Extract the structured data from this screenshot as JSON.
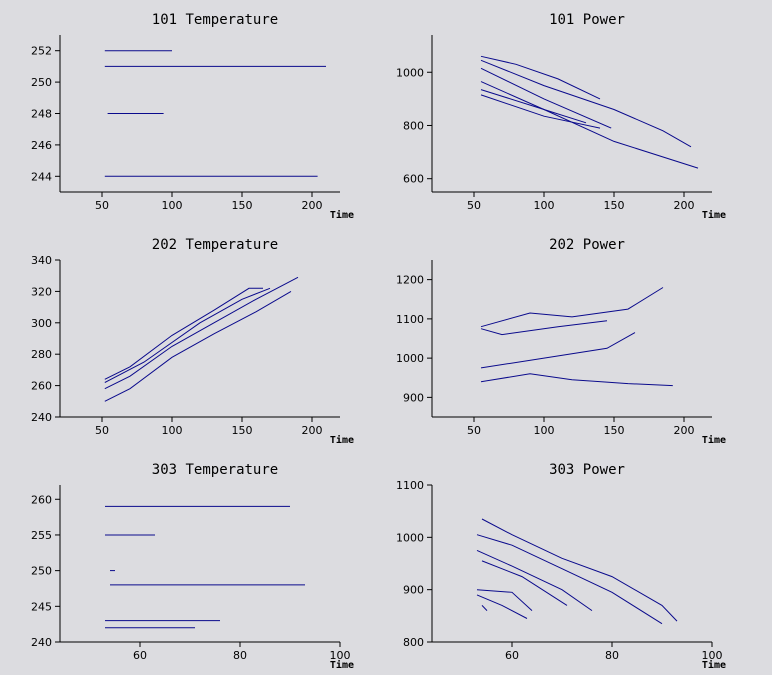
{
  "colors": {
    "background": "#dcdce0",
    "axis": "#000000",
    "series": "#0a0a8c"
  },
  "chart_data": [
    {
      "type": "line",
      "title": "101 Temperature",
      "xlabel": "Time",
      "ylabel": "",
      "xlim": [
        20,
        220
      ],
      "ylim": [
        243,
        253
      ],
      "xticks": [
        50,
        100,
        150,
        200
      ],
      "yticks": [
        244,
        246,
        248,
        250,
        252
      ],
      "series": [
        {
          "points": [
            [
              52,
              252
            ],
            [
              100,
              252
            ]
          ]
        },
        {
          "points": [
            [
              52,
              251
            ],
            [
              210,
              251
            ]
          ]
        },
        {
          "points": [
            [
              54,
              248
            ],
            [
              94,
              248
            ]
          ]
        },
        {
          "points": [
            [
              52,
              244
            ],
            [
              204,
              244
            ]
          ]
        }
      ]
    },
    {
      "type": "line",
      "title": "101 Power",
      "xlabel": "Time",
      "ylabel": "",
      "xlim": [
        20,
        220
      ],
      "ylim": [
        550,
        1140
      ],
      "xticks": [
        50,
        100,
        150,
        200
      ],
      "yticks": [
        600,
        800,
        1000
      ],
      "series": [
        {
          "points": [
            [
              55,
              1060
            ],
            [
              80,
              1030
            ],
            [
              110,
              975
            ],
            [
              140,
              900
            ]
          ]
        },
        {
          "points": [
            [
              55,
              1045
            ],
            [
              100,
              950
            ],
            [
              150,
              860
            ],
            [
              185,
              780
            ],
            [
              205,
              720
            ]
          ]
        },
        {
          "points": [
            [
              55,
              1015
            ],
            [
              100,
              900
            ],
            [
              148,
              790
            ]
          ]
        },
        {
          "points": [
            [
              55,
              965
            ],
            [
              100,
              860
            ],
            [
              150,
              740
            ],
            [
              210,
              640
            ]
          ]
        },
        {
          "points": [
            [
              55,
              935
            ],
            [
              100,
              860
            ],
            [
              130,
              810
            ]
          ]
        },
        {
          "points": [
            [
              55,
              915
            ],
            [
              100,
              835
            ],
            [
              140,
              790
            ]
          ]
        }
      ]
    },
    {
      "type": "line",
      "title": "202 Temperature",
      "xlabel": "Time",
      "ylabel": "",
      "xlim": [
        20,
        220
      ],
      "ylim": [
        240,
        340
      ],
      "xticks": [
        50,
        100,
        150,
        200
      ],
      "yticks": [
        240,
        260,
        280,
        300,
        320,
        340
      ],
      "series": [
        {
          "points": [
            [
              52,
              264
            ],
            [
              70,
              272
            ],
            [
              100,
              292
            ],
            [
              130,
              308
            ],
            [
              155,
              322
            ],
            [
              165,
              322
            ]
          ]
        },
        {
          "points": [
            [
              52,
              262
            ],
            [
              80,
              275
            ],
            [
              120,
              300
            ],
            [
              150,
              315
            ],
            [
              170,
              322
            ]
          ]
        },
        {
          "points": [
            [
              52,
              258
            ],
            [
              70,
              266
            ],
            [
              100,
              285
            ],
            [
              130,
              300
            ],
            [
              160,
              315
            ],
            [
              190,
              329
            ]
          ]
        },
        {
          "points": [
            [
              52,
              250
            ],
            [
              70,
              258
            ],
            [
              100,
              278
            ],
            [
              130,
              293
            ],
            [
              160,
              307
            ],
            [
              185,
              320
            ]
          ]
        }
      ]
    },
    {
      "type": "line",
      "title": "202 Power",
      "xlabel": "Time",
      "ylabel": "",
      "xlim": [
        20,
        220
      ],
      "ylim": [
        850,
        1250
      ],
      "xticks": [
        50,
        100,
        150,
        200
      ],
      "yticks": [
        900,
        1000,
        1100,
        1200
      ],
      "series": [
        {
          "points": [
            [
              55,
              1080
            ],
            [
              90,
              1115
            ],
            [
              120,
              1105
            ],
            [
              160,
              1125
            ],
            [
              185,
              1180
            ]
          ]
        },
        {
          "points": [
            [
              55,
              1075
            ],
            [
              70,
              1060
            ],
            [
              110,
              1080
            ],
            [
              145,
              1095
            ]
          ]
        },
        {
          "points": [
            [
              55,
              975
            ],
            [
              100,
              1000
            ],
            [
              145,
              1025
            ],
            [
              165,
              1065
            ]
          ]
        },
        {
          "points": [
            [
              55,
              940
            ],
            [
              90,
              960
            ],
            [
              120,
              945
            ],
            [
              160,
              935
            ],
            [
              192,
              930
            ]
          ]
        }
      ]
    },
    {
      "type": "line",
      "title": "303 Temperature",
      "xlabel": "Time",
      "ylabel": "",
      "xlim": [
        44,
        100
      ],
      "ylim": [
        240,
        262
      ],
      "xticks": [
        60,
        80,
        100
      ],
      "yticks": [
        240,
        245,
        250,
        255,
        260
      ],
      "series": [
        {
          "points": [
            [
              53,
              259
            ],
            [
              90,
              259
            ]
          ]
        },
        {
          "points": [
            [
              53,
              255
            ],
            [
              63,
              255
            ]
          ]
        },
        {
          "points": [
            [
              54,
              250
            ],
            [
              55,
              250
            ]
          ]
        },
        {
          "points": [
            [
              54,
              248
            ],
            [
              93,
              248
            ]
          ]
        },
        {
          "points": [
            [
              53,
              243
            ],
            [
              76,
              243
            ]
          ]
        },
        {
          "points": [
            [
              53,
              242
            ],
            [
              71,
              242
            ]
          ]
        }
      ]
    },
    {
      "type": "line",
      "title": "303 Power",
      "xlabel": "Time",
      "ylabel": "",
      "xlim": [
        44,
        100
      ],
      "ylim": [
        800,
        1100
      ],
      "xticks": [
        60,
        80,
        100
      ],
      "yticks": [
        800,
        900,
        1000,
        1100
      ],
      "series": [
        {
          "points": [
            [
              54,
              1035
            ],
            [
              60,
              1005
            ],
            [
              70,
              960
            ],
            [
              80,
              925
            ],
            [
              90,
              870
            ],
            [
              93,
              840
            ]
          ]
        },
        {
          "points": [
            [
              53,
              1005
            ],
            [
              60,
              985
            ],
            [
              70,
              940
            ],
            [
              80,
              895
            ],
            [
              90,
              835
            ]
          ]
        },
        {
          "points": [
            [
              53,
              975
            ],
            [
              60,
              945
            ],
            [
              70,
              900
            ],
            [
              76,
              860
            ]
          ]
        },
        {
          "points": [
            [
              54,
              955
            ],
            [
              62,
              925
            ],
            [
              71,
              870
            ]
          ]
        },
        {
          "points": [
            [
              53,
              900
            ],
            [
              60,
              895
            ],
            [
              64,
              860
            ]
          ]
        },
        {
          "points": [
            [
              53,
              890
            ],
            [
              58,
              870
            ],
            [
              63,
              845
            ]
          ]
        },
        {
          "points": [
            [
              54,
              870
            ],
            [
              55,
              860
            ]
          ]
        }
      ]
    }
  ]
}
